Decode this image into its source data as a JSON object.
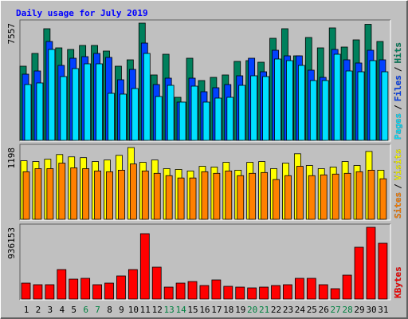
{
  "title": "Daily usage for July 2019",
  "separator": "/",
  "chart_data": [
    {
      "type": "bar",
      "ylim": [
        0,
        7557
      ],
      "yticks": [
        7557
      ],
      "series": [
        {
          "name": "Hits",
          "color": "#00805c",
          "values": [
            4781,
            5604,
            7197,
            5963,
            5861,
            6118,
            6118,
            5758,
            4781,
            5192,
            7557,
            4216,
            5552,
            2776,
            5295,
            3856,
            4061,
            4216,
            5090,
            5141,
            5038,
            6580,
            7197,
            5449,
            6632,
            5963,
            7249,
            6015,
            6478,
            7480,
            6375
          ]
        },
        {
          "name": "Files",
          "color": "#0040ff",
          "values": [
            4267,
            4473,
            6375,
            4832,
            5295,
            5398,
            5604,
            5347,
            3907,
            4575,
            6272,
            3599,
            4010,
            2468,
            4010,
            3136,
            3393,
            3599,
            4164,
            5295,
            4421,
            5809,
            5449,
            5449,
            4524,
            4061,
            5861,
            5192,
            4987,
            5809,
            5192
          ]
        },
        {
          "name": "Pages",
          "color": "#00e0ff",
          "values": [
            3599,
            3701,
            5861,
            4113,
            4627,
            4935,
            4935,
            3033,
            2982,
            3342,
            5604,
            2828,
            3547,
            2468,
            3496,
            2468,
            2725,
            2776,
            3547,
            4164,
            4113,
            5244,
            5141,
            4832,
            3856,
            3856,
            5552,
            4473,
            4421,
            5141,
            4421
          ]
        }
      ]
    },
    {
      "type": "bar",
      "ylim": [
        0,
        1198
      ],
      "yticks": [
        1198
      ],
      "series": [
        {
          "name": "Visits",
          "color": "#ffff00",
          "values": [
            977,
            964,
            1003,
            1081,
            1042,
            1029,
            964,
            990,
            1068,
            1198,
            951,
            990,
            846,
            833,
            807,
            885,
            872,
            951,
            820,
            951,
            964,
            846,
            937,
            1094,
            898,
            846,
            872,
            964,
            898,
            1133,
            820
          ]
        },
        {
          "name": "Sites",
          "color": "#ff8000",
          "values": [
            794,
            846,
            846,
            937,
            859,
            846,
            807,
            794,
            820,
            924,
            807,
            768,
            729,
            690,
            690,
            794,
            768,
            807,
            729,
            768,
            781,
            664,
            729,
            885,
            729,
            742,
            755,
            768,
            794,
            820,
            677
          ]
        }
      ]
    },
    {
      "type": "bar",
      "ylim": [
        0,
        936153
      ],
      "yticks": [
        936153
      ],
      "categories": [
        "1",
        "2",
        "3",
        "4",
        "5",
        "6",
        "7",
        "8",
        "9",
        "10",
        "11",
        "12",
        "13",
        "14",
        "15",
        "16",
        "17",
        "18",
        "19",
        "20",
        "21",
        "22",
        "23",
        "24",
        "25",
        "26",
        "27",
        "28",
        "29",
        "30",
        "31"
      ],
      "category_colors": [
        "#000000",
        "#000000",
        "#000000",
        "#000000",
        "#000000",
        "#008040",
        "#008040",
        "#000000",
        "#000000",
        "#000000",
        "#000000",
        "#000000",
        "#008040",
        "#008040",
        "#000000",
        "#000000",
        "#000000",
        "#000000",
        "#000000",
        "#008040",
        "#008040",
        "#000000",
        "#000000",
        "#000000",
        "#000000",
        "#000000",
        "#008040",
        "#008040",
        "#000000",
        "#000000",
        "#000000"
      ],
      "series": [
        {
          "name": "KBytes",
          "color": "#ff0000",
          "values": [
            208041,
            187237,
            187237,
            384863,
            260043,
            270446,
            187237,
            208041,
            301651,
            384863,
            852928,
            416068,
            156026,
            208041,
            228840,
            176832,
            249641,
            166427,
            156026,
            145622,
            156026,
            176832,
            187237,
            270446,
            270446,
            187237,
            135222,
            312051,
            676110,
            936153,
            728119
          ]
        }
      ]
    }
  ]
}
